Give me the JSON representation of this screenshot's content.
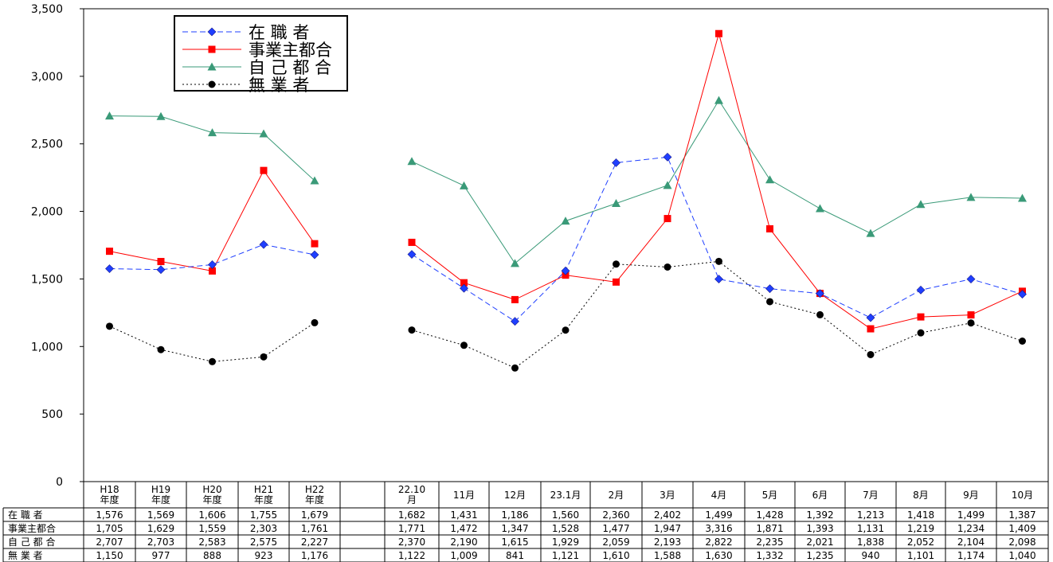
{
  "chart_data": {
    "type": "line",
    "ylim": [
      0,
      3500
    ],
    "y_ticks": [
      "0",
      "500",
      "1,000",
      "1,500",
      "2,000",
      "2,500",
      "3,000",
      "3,500"
    ],
    "grid": false,
    "legend_position": "top-left",
    "categories": [
      [
        "H18",
        "年度"
      ],
      [
        "H19",
        "年度"
      ],
      [
        "H20",
        "年度"
      ],
      [
        "H21",
        "年度"
      ],
      [
        "H22",
        "年度"
      ],
      [
        ""
      ],
      [
        "22.10",
        "月"
      ],
      [
        "11月"
      ],
      [
        "12月"
      ],
      [
        "23.1月"
      ],
      [
        "2月"
      ],
      [
        "3月"
      ],
      [
        "4月"
      ],
      [
        "5月"
      ],
      [
        "6月"
      ],
      [
        "7月"
      ],
      [
        "8月"
      ],
      [
        "9月"
      ],
      [
        "10月"
      ]
    ],
    "series": [
      {
        "name": "在 職 者",
        "table_label": "在 職 者",
        "color": "#1f3fff",
        "marker": "diamond",
        "line": "dashed",
        "values": [
          1576,
          1569,
          1606,
          1755,
          1679,
          null,
          1682,
          1431,
          1186,
          1560,
          2360,
          2402,
          1499,
          1428,
          1392,
          1213,
          1418,
          1499,
          1387
        ],
        "labels": [
          "1,576",
          "1,569",
          "1,606",
          "1,755",
          "1,679",
          "",
          "1,682",
          "1,431",
          "1,186",
          "1,560",
          "2,360",
          "2,402",
          "1,499",
          "1,428",
          "1,392",
          "1,213",
          "1,418",
          "1,499",
          "1,387"
        ]
      },
      {
        "name": "事業主都合",
        "table_label": "事業主都合",
        "color": "#ff0000",
        "marker": "square",
        "line": "solid",
        "values": [
          1705,
          1629,
          1559,
          2303,
          1761,
          null,
          1771,
          1472,
          1347,
          1528,
          1477,
          1947,
          3316,
          1871,
          1393,
          1131,
          1219,
          1234,
          1409
        ],
        "labels": [
          "1,705",
          "1,629",
          "1,559",
          "2,303",
          "1,761",
          "",
          "1,771",
          "1,472",
          "1,347",
          "1,528",
          "1,477",
          "1,947",
          "3,316",
          "1,871",
          "1,393",
          "1,131",
          "1,219",
          "1,234",
          "1,409"
        ]
      },
      {
        "name": "自 己 都 合",
        "table_label": "自 己 都 合",
        "color": "#3a9a78",
        "marker": "triangle",
        "line": "solid",
        "values": [
          2707,
          2703,
          2583,
          2575,
          2227,
          null,
          2370,
          2190,
          1615,
          1929,
          2059,
          2193,
          2822,
          2235,
          2021,
          1838,
          2052,
          2104,
          2098
        ],
        "labels": [
          "2,707",
          "2,703",
          "2,583",
          "2,575",
          "2,227",
          "",
          "2,370",
          "2,190",
          "1,615",
          "1,929",
          "2,059",
          "2,193",
          "2,822",
          "2,235",
          "2,021",
          "1,838",
          "2,052",
          "2,104",
          "2,098"
        ]
      },
      {
        "name": "無 業 者",
        "table_label": "無 業 者",
        "color": "#000000",
        "marker": "circle",
        "line": "dotted",
        "values": [
          1150,
          977,
          888,
          923,
          1176,
          null,
          1122,
          1009,
          841,
          1121,
          1610,
          1588,
          1630,
          1332,
          1235,
          940,
          1101,
          1174,
          1040
        ],
        "labels": [
          "1,150",
          "977",
          "888",
          "923",
          "1,176",
          "",
          "1,122",
          "1,009",
          "841",
          "1,121",
          "1,610",
          "1,588",
          "1,630",
          "1,332",
          "1,235",
          "940",
          "1,101",
          "1,174",
          "1,040"
        ]
      }
    ]
  }
}
